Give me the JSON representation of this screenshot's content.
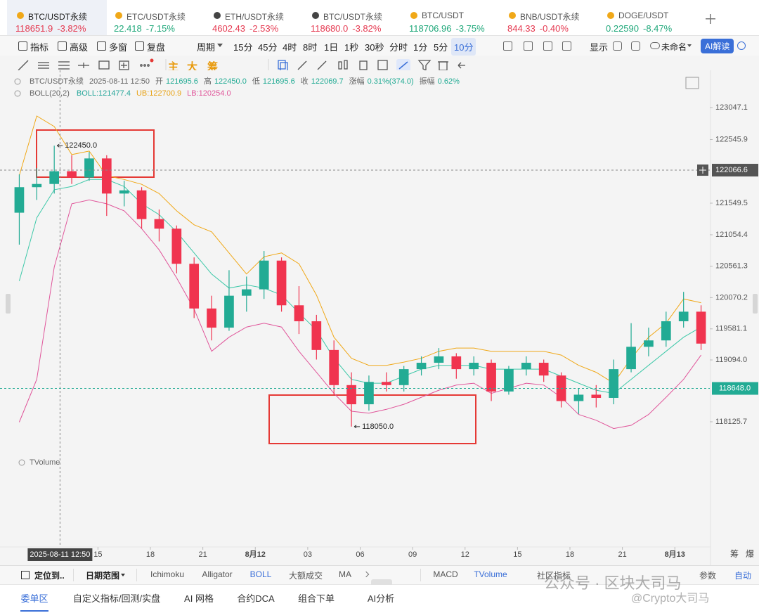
{
  "tabs": [
    {
      "name": "BTC/USDT永续",
      "price": "118651.9",
      "change": "-3.82%",
      "color": "#e53950"
    },
    {
      "name": "ETC/USDT永续",
      "price": "22.418",
      "change": "-7.15%",
      "color": "#1fa87a"
    },
    {
      "name": "ETH/USDT永续",
      "price": "4602.43",
      "change": "-2.53%",
      "color": "#e53950"
    },
    {
      "name": "BTC/USDT永续",
      "price": "118680.0",
      "change": "-3.82%",
      "color": "#e53950"
    },
    {
      "name": "BTC/USDT",
      "price": "118706.96",
      "change": "-3.75%",
      "color": "#1fa87a"
    },
    {
      "name": "BNB/USDT永续",
      "price": "844.33",
      "change": "-0.40%",
      "color": "#e53950"
    },
    {
      "name": "DOGE/USDT",
      "price": "0.22590",
      "change": "-8.47%",
      "color": "#1fa87a"
    }
  ],
  "toolbar": {
    "left": [
      "指标",
      "高级",
      "多窗",
      "复盘",
      "周期"
    ],
    "intervals": [
      "15分",
      "45分",
      "4时",
      "8时",
      "1日",
      "1秒",
      "30秒",
      "分时",
      "1分",
      "5分",
      "10分"
    ],
    "right": [
      "显示",
      "未命名",
      "AI解读"
    ]
  },
  "draw_tools": [
    "主",
    "大",
    "筹"
  ],
  "info": {
    "symbol": "BTC/USDT永续",
    "time": "2025-08-11 12:50",
    "fields": [
      {
        "label": "开",
        "value": "121695.6"
      },
      {
        "label": "高",
        "value": "122450.0"
      },
      {
        "label": "低",
        "value": "121695.6"
      },
      {
        "label": "收",
        "value": "122069.7"
      },
      {
        "label": "涨幅",
        "value": "0.31%(374.0)"
      },
      {
        "label": "振幅",
        "value": "0.62%"
      }
    ]
  },
  "indicator": {
    "name": "BOLL(20,2)",
    "items": [
      {
        "text": "BOLL:121477.4",
        "color": "#26a69a"
      },
      {
        "text": "UB:122700.9",
        "color": "#e8a317"
      },
      {
        "text": "LB:120254.0",
        "color": "#e0559a"
      }
    ]
  },
  "chart_data": {
    "type": "candlestick",
    "open": [
      121400,
      121800,
      121850,
      122050,
      121950,
      122250,
      121700,
      121750,
      121300,
      121150,
      120600,
      119900,
      119600,
      120100,
      120200,
      120650,
      119950,
      119700,
      119250,
      118700,
      118400,
      118750,
      118700,
      118950,
      119050,
      119150,
      118950,
      119050,
      118600,
      118950,
      119050,
      118850,
      118450,
      118550,
      118500,
      118950,
      119300,
      119400,
      119700,
      119850
    ],
    "high": [
      122000,
      122100,
      122450,
      122300,
      122350,
      122300,
      121900,
      121800,
      121450,
      121200,
      120700,
      120100,
      120500,
      120400,
      120800,
      120700,
      120250,
      119800,
      119400,
      118900,
      118850,
      118900,
      119000,
      119150,
      119280,
      119200,
      119150,
      119100,
      119000,
      119150,
      119100,
      118900,
      118650,
      118700,
      119100,
      119670,
      119600,
      119850,
      120160,
      119950
    ],
    "low": [
      120900,
      121600,
      121700,
      121850,
      121900,
      121350,
      121500,
      121150,
      120950,
      120450,
      119750,
      119400,
      119550,
      119850,
      120050,
      119850,
      119500,
      119100,
      118550,
      118050,
      118300,
      118600,
      118600,
      118850,
      118950,
      118800,
      118850,
      118450,
      118550,
      118850,
      118750,
      118350,
      118250,
      118350,
      118400,
      118900,
      119150,
      119300,
      119600,
      119250
    ],
    "close": [
      121800,
      121850,
      122050,
      121950,
      122250,
      121700,
      121750,
      121300,
      121150,
      120600,
      119900,
      119600,
      120100,
      120200,
      120650,
      119950,
      119700,
      119250,
      118700,
      118400,
      118750,
      118700,
      118950,
      119050,
      119150,
      118950,
      119050,
      118600,
      118950,
      119050,
      118850,
      118450,
      118550,
      118500,
      118950,
      119300,
      119400,
      119700,
      119850,
      119350
    ],
    "up_color": "#22ab94",
    "down_color": "#f0344f",
    "overlays": [
      {
        "color": "#f0a818",
        "values": [
          121980,
          122915,
          122750,
          122310,
          122365,
          121980,
          121920,
          121845,
          121700,
          121430,
          121210,
          121100,
          120770,
          120440,
          120710,
          120770,
          120600,
          120110,
          119450,
          119120,
          119010,
          119010,
          119060,
          119120,
          119230,
          119280,
          119280,
          119230,
          119230,
          119230,
          119230,
          119170,
          119010,
          118900,
          118730,
          119120,
          119450,
          119670,
          120050,
          119990
        ]
      },
      {
        "color": "#3cc8a8",
        "values": [
          120330,
          121320,
          121760,
          121810,
          121920,
          121920,
          121810,
          121540,
          121370,
          121100,
          120770,
          120440,
          120220,
          120270,
          120220,
          120110,
          119830,
          119560,
          119120,
          118790,
          118730,
          118730,
          118840,
          118950,
          119010,
          119010,
          119010,
          118950,
          118950,
          118950,
          118950,
          118840,
          118730,
          118620,
          118570,
          118790,
          119010,
          119230,
          119450,
          119610
        ]
      },
      {
        "color": "#e0559a",
        "values": [
          118120,
          118790,
          120550,
          121540,
          121600,
          121540,
          121430,
          121150,
          120820,
          120380,
          119890,
          119230,
          119450,
          119610,
          119670,
          119610,
          119230,
          118900,
          118570,
          118290,
          118260,
          118320,
          118400,
          118510,
          118620,
          118700,
          118730,
          118570,
          118650,
          118730,
          118700,
          118510,
          118240,
          118150,
          118020,
          118070,
          118240,
          118510,
          118790,
          119170
        ]
      }
    ],
    "xlim": [
      0,
      40
    ],
    "xticks": [
      {
        "value": 5,
        "label": "15"
      },
      {
        "value": 8,
        "label": "18"
      },
      {
        "value": 11,
        "label": "21"
      },
      {
        "value": 14,
        "label": "8月12"
      },
      {
        "value": 17,
        "label": "03"
      },
      {
        "value": 20,
        "label": "06"
      },
      {
        "value": 23,
        "label": "09"
      },
      {
        "value": 26,
        "label": "12"
      },
      {
        "value": 29,
        "label": "15"
      },
      {
        "value": 32,
        "label": "18"
      },
      {
        "value": 35,
        "label": "21"
      },
      {
        "value": 38,
        "label": "8月13"
      }
    ],
    "ylim": [
      117685,
      123190
    ],
    "yticks": [
      123047.1,
      122545.9,
      121549.5,
      121054.4,
      120561.3,
      120070.2,
      119581.1,
      {
        "value": 119094,
        "label": "119094.0"
      },
      118125.7
    ],
    "crosshair": {
      "x": {
        "value": 2.83,
        "label": "2025-08-11 12:50"
      },
      "y": 122066.6
    },
    "last_price": {
      "value": 118648,
      "label": "118648.0",
      "color": "#22ab94"
    },
    "annotations": [
      {
        "value": 122450,
        "label": "122450.0"
      },
      {
        "value": 118050,
        "label": "118050.0"
      }
    ],
    "volume_label": "TVolume",
    "axis_side": [
      "筹",
      "爆"
    ]
  },
  "indicator_bar": {
    "left": [
      "定位到..",
      "日期范围"
    ],
    "tabs": [
      "Ichimoku",
      "Alligator",
      "BOLL",
      "大额成交",
      "MA"
    ],
    "right": [
      "MACD",
      "TVolume",
      "社区指标"
    ],
    "far": [
      "参数",
      "自动"
    ]
  },
  "footer": [
    "委单区",
    "自定义指标/回测/实盘",
    "AI 网格",
    "合约DCA",
    "组合下单",
    "AI分析"
  ],
  "watermark": [
    "公众号 · 区块大司马",
    "@Crypto大司马"
  ]
}
